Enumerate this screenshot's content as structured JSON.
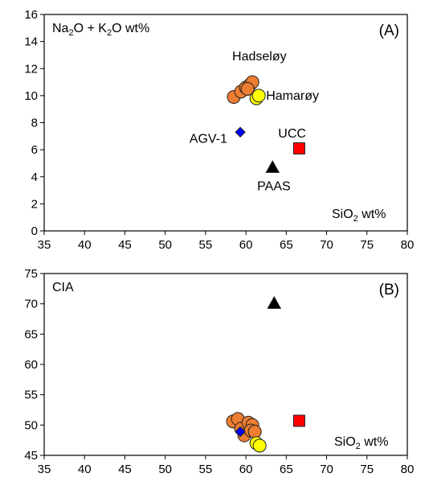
{
  "chart_data": [
    {
      "type": "scatter",
      "panel_label": "(A)",
      "ylabel_parts": [
        "Na",
        "2",
        "O + K",
        "2",
        "O wt%"
      ],
      "xlabel_parts": [
        "SiO",
        "2",
        " wt%"
      ],
      "xlim": [
        35,
        80
      ],
      "ylim": [
        0,
        16
      ],
      "xticks": [
        35,
        40,
        45,
        50,
        55,
        60,
        65,
        70,
        75,
        80
      ],
      "yticks": [
        0,
        2,
        4,
        6,
        8,
        10,
        12,
        14,
        16
      ],
      "grid": false,
      "series": [
        {
          "name": "Hadseløy",
          "marker": "circle",
          "color": "#ED7D31",
          "points": [
            [
              58.5,
              9.9
            ],
            [
              59.4,
              10.3
            ],
            [
              60.0,
              10.6
            ],
            [
              60.5,
              10.8
            ],
            [
              60.8,
              11.0
            ],
            [
              60.2,
              10.5
            ]
          ]
        },
        {
          "name": "Hamarøy",
          "marker": "circle",
          "color": "#FFFF00",
          "points": [
            [
              61.3,
              9.8
            ],
            [
              61.6,
              10.0
            ]
          ]
        },
        {
          "name": "AGV-1",
          "marker": "diamond",
          "color": "#0000FF",
          "points": [
            [
              59.3,
              7.3
            ]
          ]
        },
        {
          "name": "UCC",
          "marker": "square",
          "color": "#FF0000",
          "points": [
            [
              66.6,
              6.1
            ]
          ]
        },
        {
          "name": "PAAS",
          "marker": "triangle",
          "color": "#000000",
          "points": [
            [
              63.3,
              4.7
            ]
          ]
        }
      ]
    },
    {
      "type": "scatter",
      "panel_label": "(B)",
      "ylabel_parts": [
        "CIA"
      ],
      "xlabel_parts": [
        "SiO",
        "2",
        " wt%"
      ],
      "xlim": [
        35,
        80
      ],
      "ylim": [
        45,
        75
      ],
      "xticks": [
        35,
        40,
        45,
        50,
        55,
        60,
        65,
        70,
        75,
        80
      ],
      "yticks": [
        45,
        50,
        55,
        60,
        65,
        70,
        75
      ],
      "grid": false,
      "series": [
        {
          "marker": "circle",
          "color": "#ED7D31",
          "points": [
            [
              58.4,
              50.6
            ],
            [
              59.0,
              51.0
            ],
            [
              59.4,
              49.4
            ],
            [
              59.8,
              48.3
            ],
            [
              60.3,
              50.4
            ],
            [
              60.8,
              50.0
            ],
            [
              60.6,
              49.1
            ],
            [
              61.1,
              48.9
            ]
          ]
        },
        {
          "marker": "circle",
          "color": "#FFFF00",
          "points": [
            [
              61.3,
              47.0
            ],
            [
              61.7,
              46.6
            ]
          ]
        },
        {
          "marker": "diamond",
          "color": "#0000FF",
          "points": [
            [
              59.3,
              48.9
            ]
          ]
        },
        {
          "marker": "square",
          "color": "#FF0000",
          "points": [
            [
              66.6,
              50.7
            ]
          ]
        },
        {
          "marker": "triangle",
          "color": "#000000",
          "points": [
            [
              63.5,
              70.1
            ]
          ]
        }
      ]
    }
  ],
  "annotations_a": [
    {
      "text": "Hadseløy",
      "x": 58.3,
      "y": 12.6
    },
    {
      "text": "Hamarøy",
      "x": 62.5,
      "y": 9.7
    },
    {
      "text": "AGV-1",
      "x": 53.0,
      "y": 6.5
    },
    {
      "text": "UCC",
      "x": 64.0,
      "y": 6.9
    },
    {
      "text": "PAAS",
      "x": 61.4,
      "y": 3.0
    }
  ]
}
